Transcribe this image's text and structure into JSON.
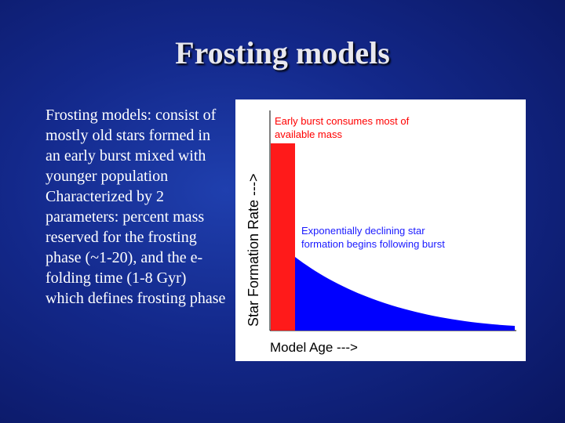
{
  "slide": {
    "title": "Frosting models",
    "bullets": [
      "Frosting models: consist of mostly old stars formed in an early burst mixed with younger population",
      "Characterized by 2 parameters: percent mass reserved for the frosting phase (~1-20), and the e-folding time (1-8 Gyr) which defines frosting phase"
    ]
  },
  "diagram": {
    "ylabel": "Star Formation Rate  --->",
    "xlabel": "Model Age  --->",
    "burst_annotation": [
      "Early burst consumes most of",
      "available mass"
    ],
    "decline_annotation": [
      "Exponentially declining star",
      "formation begins following burst"
    ],
    "colors": {
      "burst": "#ff1a1a",
      "decline": "#0000ff",
      "burst_text": "#ff0000",
      "decline_text": "#1a1aff"
    }
  }
}
